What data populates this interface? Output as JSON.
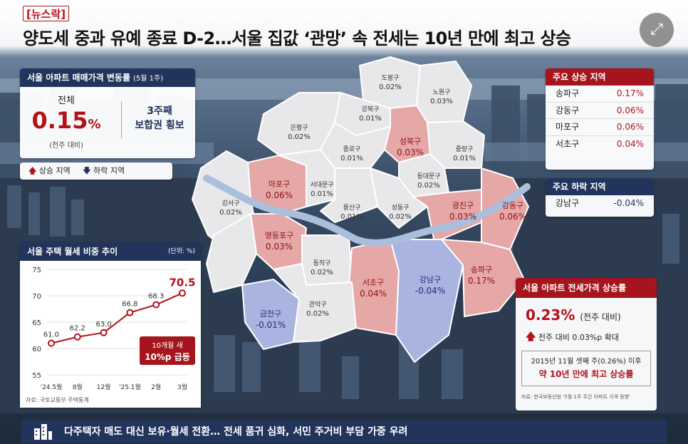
{
  "tag": "[뉴스락]",
  "headline": "양도세 중과 유예 종료 D-2…서울 집값 ‘관망’ 속 전세는 10년 만에 최고 상승",
  "rate_card": {
    "title": "서울 아파트 매매가격 변동률",
    "period": "(5월 1주)",
    "total_label": "전체",
    "total_value": "0.15",
    "total_unit": "%",
    "total_note": "(전주 대비)",
    "right_line1": "3주째",
    "right_line2": "보합권 횡보"
  },
  "legend": {
    "up_icon": "arrow-up",
    "up_label": "상승 지역",
    "down_icon": "arrow-down",
    "down_label": "하락 지역"
  },
  "districts": [
    {
      "name": "도봉구",
      "value": "0.02%",
      "type": "neutral"
    },
    {
      "name": "노원구",
      "value": "0.03%",
      "type": "neutral"
    },
    {
      "name": "강북구",
      "value": "0.01%",
      "type": "neutral"
    },
    {
      "name": "은평구",
      "value": "0.02%",
      "type": "neutral"
    },
    {
      "name": "성북구",
      "value": "0.03%",
      "type": "up"
    },
    {
      "name": "종로구",
      "value": "0.01%",
      "type": "neutral"
    },
    {
      "name": "중랑구",
      "value": "0.01%",
      "type": "neutral"
    },
    {
      "name": "동대문구",
      "value": "0.02%",
      "type": "neutral"
    },
    {
      "name": "마포구",
      "value": "0.06%",
      "type": "up"
    },
    {
      "name": "서대문구",
      "value": "0.01%",
      "type": "neutral"
    },
    {
      "name": "강서구",
      "value": "0.02%",
      "type": "neutral"
    },
    {
      "name": "용산구",
      "value": "0.01%",
      "type": "neutral"
    },
    {
      "name": "성동구",
      "value": "0.02%",
      "type": "neutral"
    },
    {
      "name": "광진구",
      "value": "0.03%",
      "type": "up"
    },
    {
      "name": "강동구",
      "value": "0.06%",
      "type": "up"
    },
    {
      "name": "영등포구",
      "value": "0.03%",
      "type": "up"
    },
    {
      "name": "동작구",
      "value": "0.02%",
      "type": "neutral"
    },
    {
      "name": "서초구",
      "value": "0.04%",
      "type": "up"
    },
    {
      "name": "강남구",
      "value": "-0.04%",
      "type": "down"
    },
    {
      "name": "송파구",
      "value": "0.17%",
      "type": "up"
    },
    {
      "name": "금천구",
      "value": "-0.01%",
      "type": "down"
    },
    {
      "name": "관악구",
      "value": "0.02%",
      "type": "neutral"
    }
  ],
  "top_rise": {
    "title": "주요 상승 지역",
    "rows": [
      {
        "name": "송파구",
        "value": "0.17%"
      },
      {
        "name": "강동구",
        "value": "0.06%"
      },
      {
        "name": "마포구",
        "value": "0.06%"
      },
      {
        "name": "서초구",
        "value": "0.04%"
      }
    ]
  },
  "top_fall": {
    "title": "주요 하락 지역",
    "rows": [
      {
        "name": "강남구",
        "value": "-0.04%"
      }
    ]
  },
  "chart_data": {
    "type": "line",
    "title": "서울 주택 월세 비중 추이",
    "unit_note": "(단위: %)",
    "categories": [
      "'24.5월",
      "8월",
      "12월",
      "'25.1월",
      "2월",
      "3월"
    ],
    "values": [
      61.0,
      62.2,
      63.0,
      66.8,
      68.3,
      70.5
    ],
    "value_labels": [
      "61.0",
      "62.2",
      "63.0",
      "66.8",
      "68.3",
      "70.5"
    ],
    "yticks": [
      "75",
      "70",
      "65",
      "60",
      "55"
    ],
    "ylim": [
      55,
      75
    ],
    "callout_line1": "10개월 새",
    "callout_line2": "10%p 급등",
    "source": "자료: 국토교통부 주택통계",
    "color": "#b3121b"
  },
  "jeonse": {
    "title": "서울 아파트 전세가격 상승률",
    "value": "0.23%",
    "value_note": "(전주 대비)",
    "change_text": "전주 대비 0.03%p 확대",
    "box_line1": "2015년 11월 셋째 주(0.26%) 이후",
    "box_line2": "약 10년 만에 최고 상승률",
    "source": "자료: 한국부동산원 '5월 1주 주간 아파트 가격 동향'"
  },
  "banner": {
    "icon": "buildings-icon",
    "text": "다주택자 매도 대신 보유·월세 전환… 전세 품귀 심화, 서민 주거비 부담 가중 우려"
  },
  "expand_icon": "expand-icon",
  "colors": {
    "up": "#e6a7a7",
    "down": "#aab4e0",
    "neutral": "#e8e8ea",
    "river": "#aabfdc",
    "navy": "#23345c",
    "red": "#a6151d"
  }
}
